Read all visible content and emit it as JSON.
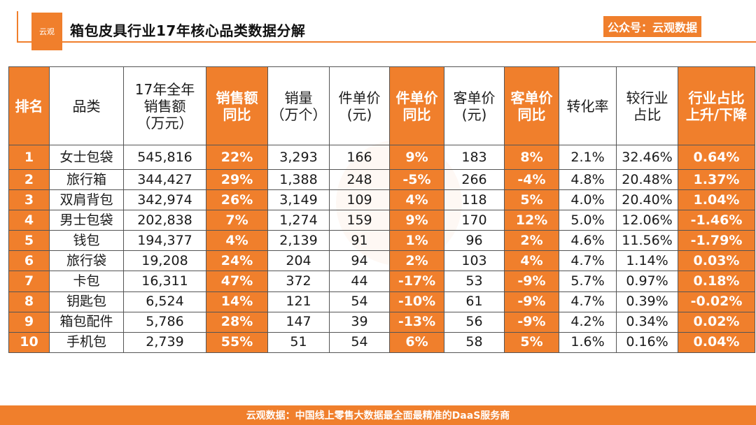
{
  "header": {
    "logo_text": "云观",
    "title": "箱包皮具行业17年核心品类数据分解",
    "account": "公众号：云观数据"
  },
  "colors": {
    "accent": "#f07f2c"
  },
  "chart_data": {
    "type": "table",
    "columns": [
      "排名",
      "品类",
      "17年全年\n销售额\n（万元）",
      "销售额\n同比",
      "销量\n（万个）",
      "件单价\n(元)",
      "件单价\n同比",
      "客单价\n(元)",
      "客单价\n同比",
      "转化率",
      "较行业\n占比",
      "行业占比\n上升/下降"
    ],
    "rows": [
      [
        "1",
        "女士包袋",
        "545,816",
        "22%",
        "3,293",
        "166",
        "9%",
        "183",
        "8%",
        "2.1%",
        "32.46%",
        "0.64%"
      ],
      [
        "2",
        "旅行箱",
        "344,427",
        "29%",
        "1,388",
        "248",
        "-5%",
        "266",
        "-4%",
        "4.8%",
        "20.48%",
        "1.37%"
      ],
      [
        "3",
        "双肩背包",
        "342,974",
        "26%",
        "3,149",
        "109",
        "4%",
        "118",
        "5%",
        "4.0%",
        "20.40%",
        "1.04%"
      ],
      [
        "4",
        "男士包袋",
        "202,838",
        "7%",
        "1,274",
        "159",
        "9%",
        "170",
        "12%",
        "5.0%",
        "12.06%",
        "-1.46%"
      ],
      [
        "5",
        "钱包",
        "194,377",
        "4%",
        "2,139",
        "91",
        "1%",
        "96",
        "2%",
        "4.6%",
        "11.56%",
        "-1.79%"
      ],
      [
        "6",
        "旅行袋",
        "19,208",
        "24%",
        "204",
        "94",
        "2%",
        "103",
        "4%",
        "4.7%",
        "1.14%",
        "0.03%"
      ],
      [
        "7",
        "卡包",
        "16,311",
        "47%",
        "372",
        "44",
        "-17%",
        "53",
        "-9%",
        "5.7%",
        "0.97%",
        "0.18%"
      ],
      [
        "8",
        "钥匙包",
        "6,524",
        "14%",
        "121",
        "54",
        "-10%",
        "61",
        "-9%",
        "4.7%",
        "0.39%",
        "-0.02%"
      ],
      [
        "9",
        "箱包配件",
        "5,786",
        "28%",
        "147",
        "39",
        "-13%",
        "56",
        "-9%",
        "4.2%",
        "0.34%",
        "0.02%"
      ],
      [
        "10",
        "手机包",
        "2,739",
        "55%",
        "51",
        "54",
        "6%",
        "58",
        "5%",
        "1.6%",
        "0.16%",
        "0.04%"
      ]
    ],
    "highlighted_columns": [
      0,
      3,
      6,
      8,
      11
    ]
  },
  "footer": {
    "text": "云观数据：中国线上零售大数据最全面最精准的DaaS服务商"
  }
}
